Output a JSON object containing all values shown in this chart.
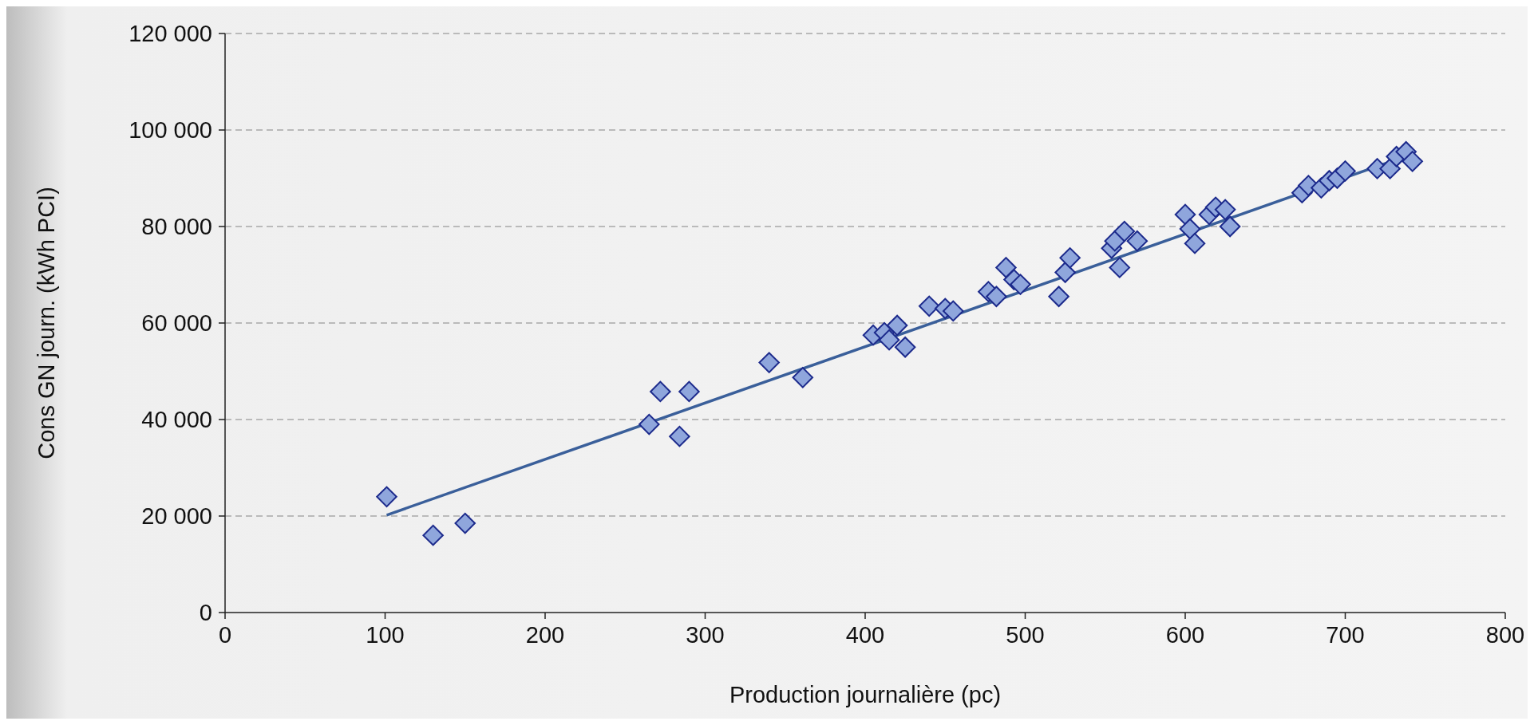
{
  "chart_data": {
    "type": "scatter",
    "xlabel": "Production journalière (pc)",
    "ylabel": "Cons GN journ. (kWh PCI)",
    "xlim": [
      0,
      800
    ],
    "xticks": [
      0,
      100,
      200,
      300,
      400,
      500,
      600,
      700,
      800
    ],
    "ylim": [
      0,
      120000
    ],
    "yticks": [
      {
        "value": 0,
        "label": "0"
      },
      {
        "value": 20000,
        "label": "20 000"
      },
      {
        "value": 40000,
        "label": "40 000"
      },
      {
        "value": 60000,
        "label": "60 000"
      },
      {
        "value": 80000,
        "label": "80 000"
      },
      {
        "value": 100000,
        "label": "100 000"
      },
      {
        "value": 120000,
        "label": "120 000"
      }
    ],
    "grid": "y",
    "marker": "diamond",
    "series": [
      {
        "color": "#8fa6dc",
        "x": [
          101,
          130,
          150,
          265,
          272,
          284,
          290,
          340,
          361,
          405,
          412,
          415,
          420,
          425,
          440,
          450,
          455,
          477,
          482,
          488,
          493,
          497,
          521,
          525,
          528,
          554,
          556,
          559,
          562,
          570,
          600,
          603,
          606,
          615,
          619,
          625,
          628,
          673,
          677,
          685,
          690,
          695,
          700,
          720,
          728,
          732,
          738,
          742
        ],
        "values": [
          24000,
          16000,
          18500,
          39000,
          45800,
          36500,
          45800,
          51800,
          48700,
          57500,
          58000,
          56500,
          59500,
          55000,
          63500,
          63000,
          62500,
          66500,
          65500,
          71500,
          69000,
          68000,
          65500,
          70500,
          73500,
          75500,
          77000,
          71500,
          79000,
          77000,
          82500,
          79500,
          76500,
          82500,
          84000,
          83500,
          80000,
          87000,
          88500,
          88000,
          89500,
          90000,
          91500,
          92000,
          92000,
          94500,
          95500,
          93500
        ]
      },
      {
        "type": "line",
        "color": "#3a5f9a",
        "x": [
          101,
          740
        ],
        "values": [
          20200,
          94800
        ],
        "marker": "none",
        "line_style": "solid"
      }
    ]
  }
}
